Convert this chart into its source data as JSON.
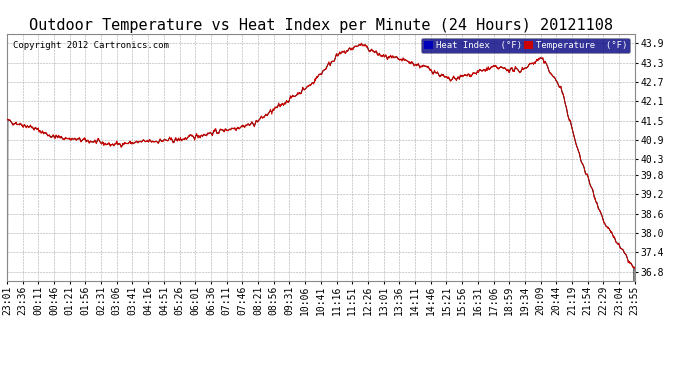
{
  "title": "Outdoor Temperature vs Heat Index per Minute (24 Hours) 20121108",
  "copyright": "Copyright 2012 Cartronics.com",
  "y_ticks": [
    36.8,
    37.4,
    38.0,
    38.6,
    39.2,
    39.8,
    40.3,
    40.9,
    41.5,
    42.1,
    42.7,
    43.3,
    43.9
  ],
  "ylim": [
    36.5,
    44.2
  ],
  "x_labels": [
    "23:01",
    "23:36",
    "00:11",
    "00:46",
    "01:21",
    "01:56",
    "02:31",
    "03:06",
    "03:41",
    "04:16",
    "04:51",
    "05:26",
    "06:01",
    "06:36",
    "07:11",
    "07:46",
    "08:21",
    "08:56",
    "09:31",
    "10:06",
    "10:41",
    "11:16",
    "11:51",
    "12:26",
    "13:01",
    "13:36",
    "14:11",
    "14:46",
    "15:21",
    "15:56",
    "16:31",
    "17:06",
    "18:59",
    "19:34",
    "20:09",
    "20:44",
    "21:19",
    "21:54",
    "22:29",
    "23:04",
    "23:55"
  ],
  "bg_color": "#ffffff",
  "plot_bg_color": "#ffffff",
  "grid_color": "#aaaaaa",
  "temp_color": "#cc0000",
  "heat_color": "#000000",
  "legend_heat_bg": "#0000bb",
  "legend_temp_bg": "#cc0000",
  "title_fontsize": 11,
  "tick_fontsize": 7,
  "copyright_fontsize": 6.5,
  "keypoints_x": [
    0,
    55,
    105,
    195,
    240,
    325,
    395,
    565,
    695,
    755,
    810,
    860,
    915,
    970,
    1015,
    1065,
    1115,
    1175,
    1225,
    1270,
    1310,
    1370,
    1439
  ],
  "keypoints_y": [
    41.5,
    41.3,
    41.0,
    40.85,
    40.75,
    40.85,
    40.9,
    41.4,
    42.6,
    43.5,
    43.87,
    43.5,
    43.35,
    43.1,
    42.75,
    42.95,
    43.15,
    43.05,
    43.45,
    42.5,
    40.5,
    38.3,
    36.85
  ],
  "noise_std": 0.07,
  "noise_smooth": 3
}
